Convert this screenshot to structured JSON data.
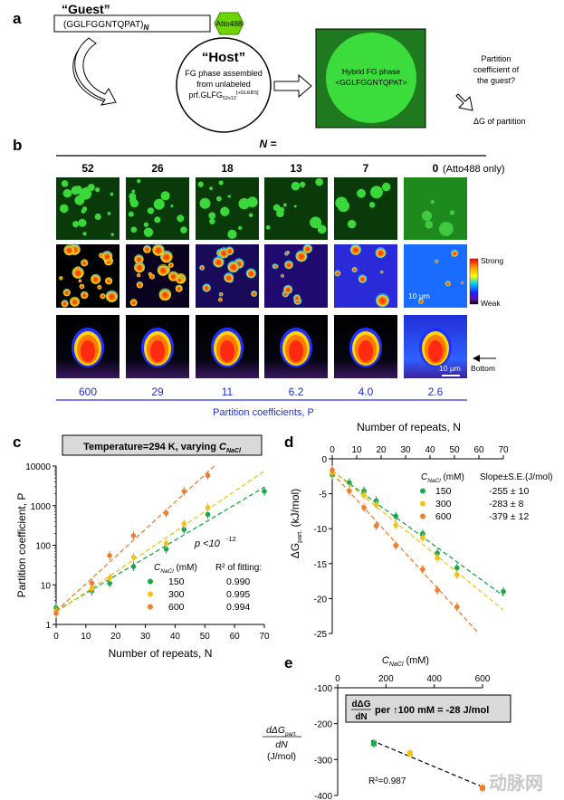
{
  "panel_labels": {
    "a": "a",
    "b": "b",
    "c": "c",
    "d": "d",
    "e": "e"
  },
  "panel_a": {
    "guest_title": "“Guest”",
    "guest_seq": "(GGLFGGNTQPAT)",
    "guest_sub": "N",
    "dye": "Atto488",
    "host_title": "“Host”",
    "host_line1": "FG phase assembled",
    "host_line2": "from unlabeled",
    "host_line3": "prf.GLFG",
    "host_line3_sub": "52x12",
    "host_line3_sup": "[+GLEBS]",
    "hybrid_line1": "Hybrid FG phase",
    "hybrid_line2": "<GGLFGGNTQPAT>",
    "question_line1": "Partition",
    "question_line2": "coefficient of",
    "question_line3": "the guest?",
    "dg_label": "ΔG of partition"
  },
  "panel_b": {
    "n_header": "N =",
    "columns": [
      "52",
      "26",
      "18",
      "13",
      "7",
      "0"
    ],
    "last_column_note": "(Atto488 only)",
    "scale_bar": "10 μm",
    "scale_bar_2": "10 μm",
    "colorbar_top": "Strong",
    "colorbar_bottom": "Weak",
    "bottom_label": "Bottom",
    "partition_values": [
      "600",
      "29",
      "11",
      "6.2",
      "4.0",
      "2.6"
    ],
    "partition_caption": "Partition coefficients, P"
  },
  "chart_data": [
    {
      "panel": "c",
      "type": "scatter",
      "title": "Temperature=294 K, varying C_NaCl",
      "xlabel": "Number of repeats, N",
      "ylabel": "Partition coefficient, P",
      "x_scale": "linear",
      "y_scale": "log",
      "xlim": [
        0,
        70
      ],
      "ylim": [
        1,
        10000
      ],
      "xticks": [
        "0",
        "10",
        "20",
        "30",
        "40",
        "50",
        "60",
        "70"
      ],
      "yticks": [
        "1",
        "10",
        "100",
        "1000",
        "10000"
      ],
      "annotation": "p <10",
      "annotation_exp": "-12",
      "legend": {
        "header_left": "C",
        "header_sub": "NaCl",
        "header_unit": "(mM)",
        "header_right": "R² of fitting:"
      },
      "series": [
        {
          "name": "150",
          "r2": "0.990",
          "color": "#1aa64a",
          "x": [
            0,
            12,
            18,
            26,
            37,
            43,
            51,
            70
          ],
          "y": [
            2.6,
            7,
            11,
            29,
            80,
            250,
            600,
            2300
          ]
        },
        {
          "name": "300",
          "r2": "0.995",
          "color": "#f2c316",
          "x": [
            0,
            12,
            18,
            26,
            37,
            43,
            51
          ],
          "y": [
            2.2,
            8,
            15,
            50,
            110,
            350,
            900
          ]
        },
        {
          "name": "600",
          "r2": "0.994",
          "color": "#ef7e2e",
          "x": [
            0,
            12,
            18,
            26,
            37,
            43,
            51
          ],
          "y": [
            1.9,
            11,
            55,
            175,
            650,
            2300,
            5800
          ]
        }
      ]
    },
    {
      "panel": "d",
      "type": "scatter",
      "xlabel": "Number of repeats, N",
      "ylabel": "ΔG",
      "ylabel_sub": "part.",
      "ylabel_unit": "(kJ/mol)",
      "xlim": [
        0,
        70
      ],
      "ylim": [
        -25,
        0
      ],
      "xticks": [
        "0",
        "10",
        "20",
        "30",
        "40",
        "50",
        "60",
        "70"
      ],
      "yticks": [
        "0",
        "-5",
        "-10",
        "-15",
        "-20",
        "-25"
      ],
      "legend": {
        "header_left": "C",
        "header_sub": "NaCl",
        "header_unit": "(mM)",
        "header_right": "Slope±S.E.(J/mol)"
      },
      "series": [
        {
          "name": "150",
          "slope": "-255 ± 10",
          "color": "#1aa64a",
          "x": [
            0,
            7,
            13,
            18,
            26,
            37,
            43,
            51,
            70
          ],
          "y": [
            -2.3,
            -3.4,
            -4.6,
            -6,
            -8.2,
            -10.7,
            -13.5,
            -15.6,
            -19
          ]
        },
        {
          "name": "300",
          "slope": "-283 ± 8",
          "color": "#f2c316",
          "x": [
            0,
            13,
            18,
            26,
            37,
            43,
            51
          ],
          "y": [
            -2,
            -5.2,
            -6.6,
            -9.5,
            -11.3,
            -14.2,
            -16.6
          ]
        },
        {
          "name": "600",
          "slope": "-379 ± 12",
          "color": "#ef7e2e",
          "x": [
            0,
            7,
            13,
            18,
            26,
            37,
            43,
            51
          ],
          "y": [
            -1.6,
            -4.6,
            -7,
            -9.6,
            -12.4,
            -15.8,
            -18.8,
            -21.2
          ]
        }
      ]
    },
    {
      "panel": "e",
      "type": "scatter",
      "xlabel": "C",
      "xlabel_sub": "NaCl",
      "xlabel_unit": "(mM)",
      "ylabel_line1": "dΔG",
      "ylabel_line1_sub": "part.",
      "ylabel_line2": "dN",
      "ylabel_line3": "(J/mol)",
      "xlim": [
        0,
        600
      ],
      "ylim": [
        -400,
        -100
      ],
      "xticks": [
        "0",
        "200",
        "400",
        "600"
      ],
      "yticks": [
        "-100",
        "-200",
        "-300",
        "-400"
      ],
      "box_text_top": "dΔG",
      "box_text_bottom": "dN",
      "box_text_rest": "per ↑100 mM = -28 J/mol",
      "r2_text": "R²=0.987",
      "x": [
        150,
        300,
        600
      ],
      "y": [
        -255,
        -283,
        -379
      ],
      "colors": [
        "#1aa64a",
        "#f2c316",
        "#ef7e2e"
      ]
    }
  ],
  "watermark": "动脉网"
}
